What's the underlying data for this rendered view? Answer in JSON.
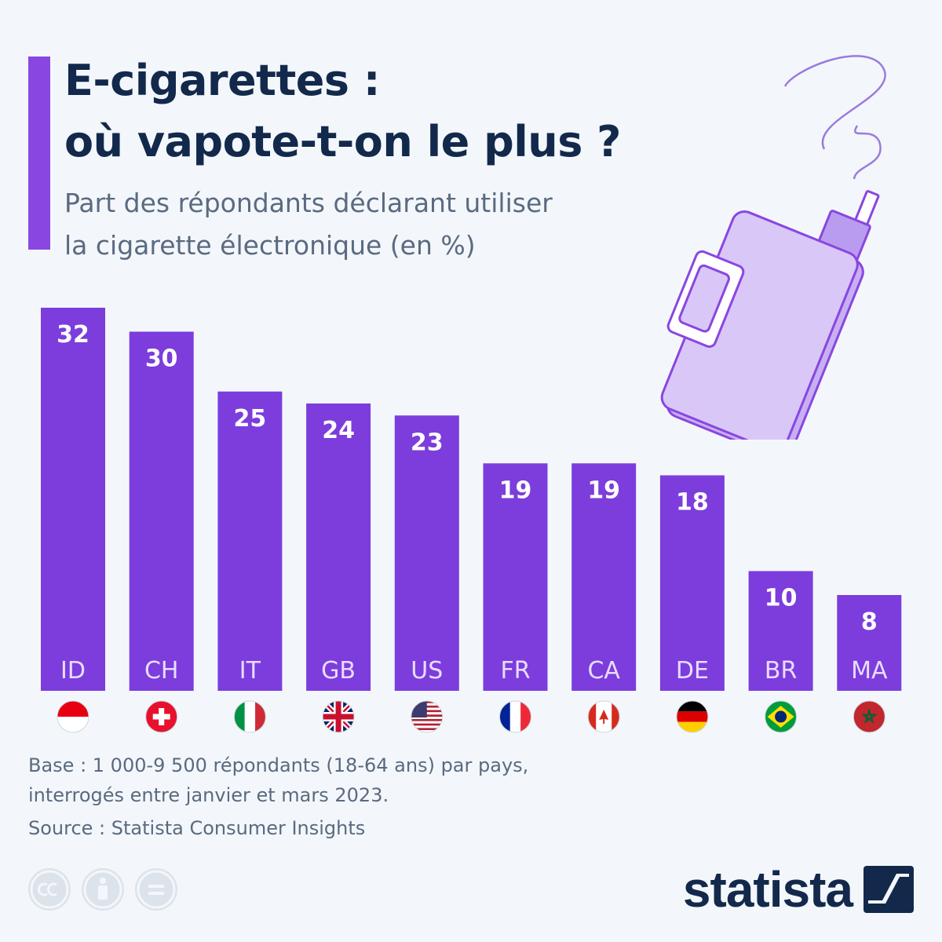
{
  "header": {
    "title_line1": "E-cigarettes :",
    "title_line2": "où vapote-t-on le plus ?",
    "subtitle_line1": "Part des répondants déclarant utiliser",
    "subtitle_line2": "la cigarette électronique (en %)"
  },
  "chart_data": {
    "type": "bar",
    "categories": [
      "ID",
      "CH",
      "IT",
      "GB",
      "US",
      "FR",
      "CA",
      "DE",
      "BR",
      "MA"
    ],
    "values": [
      32,
      30,
      25,
      24,
      23,
      19,
      19,
      18,
      10,
      8
    ],
    "title": "E-cigarettes : où vapote-t-on le plus ?",
    "ylabel": "",
    "xlabel": "",
    "ylim": [
      0,
      32
    ],
    "grid": false,
    "bar_color": "#7c3ddc",
    "label_color": "#ffffff"
  },
  "flags": [
    "indonesia-flag-icon",
    "switzerland-flag-icon",
    "italy-flag-icon",
    "uk-flag-icon",
    "usa-flag-icon",
    "france-flag-icon",
    "canada-flag-icon",
    "germany-flag-icon",
    "brazil-flag-icon",
    "morocco-flag-icon"
  ],
  "footer": {
    "note_line1": "Base : 1 000-9 500 répondants (18-64 ans) par pays,",
    "note_line2": "interrogés entre janvier et mars 2023.",
    "source": "Source : Statista Consumer Insights"
  },
  "license_icons": [
    "cc-icon",
    "by-icon",
    "nd-icon"
  ],
  "logo": {
    "text": "statista"
  },
  "colors": {
    "accent": "#8a46e0",
    "bar": "#7c3ddc",
    "title": "#13294b",
    "muted": "#5a6a80"
  }
}
